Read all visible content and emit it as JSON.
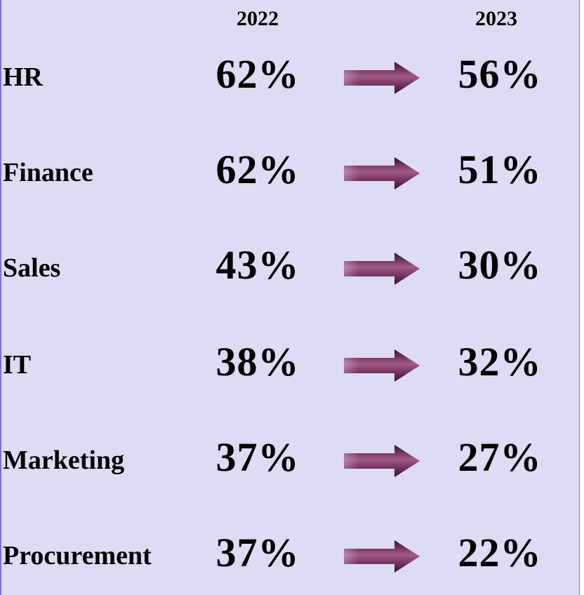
{
  "chart_data": {
    "type": "table",
    "columns": [
      "2022",
      "2023"
    ],
    "rows": [
      {
        "category": "HR",
        "v2022": "62%",
        "v2023": "56%"
      },
      {
        "category": "Finance",
        "v2022": "62%",
        "v2023": "51%"
      },
      {
        "category": "Sales",
        "v2022": "43%",
        "v2023": "30%"
      },
      {
        "category": "IT",
        "v2022": "38%",
        "v2023": "32%"
      },
      {
        "category": "Marketing",
        "v2022": "37%",
        "v2023": "27%"
      },
      {
        "category": "Procurement",
        "v2022": "37%",
        "v2023": "22%"
      }
    ],
    "arrow_icon": "right-arrow-icon",
    "colors": {
      "background": "#dedbf4",
      "arrow": "#5b1b44",
      "border": "#7a70d8"
    }
  }
}
